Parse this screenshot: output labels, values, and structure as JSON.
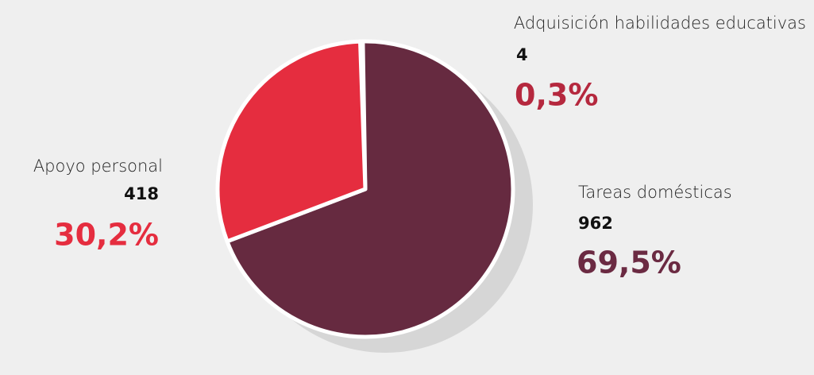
{
  "chart_data": {
    "type": "pie",
    "categories": [
      "Adquisición habilidades educativas",
      "Tareas domésticas",
      "Apoyo personal"
    ],
    "values": [
      4,
      962,
      418
    ],
    "shares": [
      0.3,
      69.5,
      30.2
    ],
    "share_labels": [
      "0,3%",
      "69,5%",
      "30,2%"
    ],
    "colors": [
      "#a8283c",
      "#662a40",
      "#e52d3f"
    ],
    "label_colors": [
      "#b5283e",
      "#6b2a42",
      "#e52d3f"
    ]
  }
}
